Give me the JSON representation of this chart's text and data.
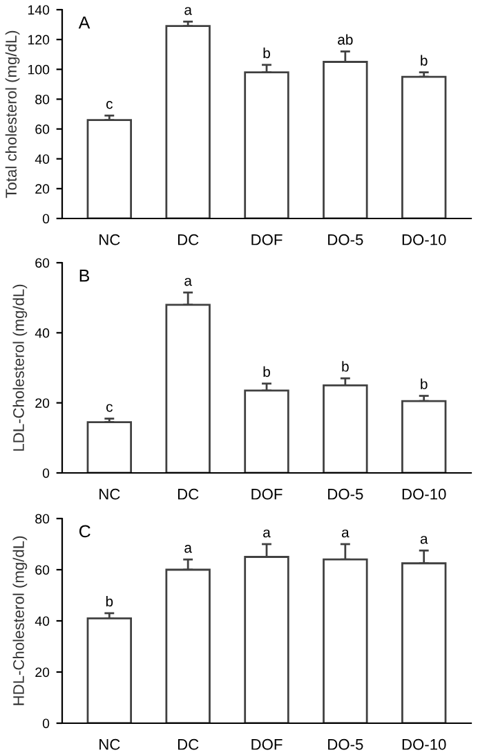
{
  "chart_data": [
    {
      "type": "bar",
      "title": "A",
      "ylabel": "Total cholesterol (mg/dL)",
      "categories": [
        "NC",
        "DC",
        "DOF",
        "DO-5",
        "DO-10"
      ],
      "color": "#ffffff",
      "values": [
        66,
        129,
        98,
        105,
        95
      ],
      "errors": [
        [
          66,
          69
        ],
        [
          129,
          132
        ],
        [
          98,
          103
        ],
        [
          105,
          112
        ],
        [
          95,
          98
        ]
      ],
      "ylim": [
        0,
        140
      ],
      "yticks": [
        0,
        20,
        40,
        60,
        80,
        100,
        120,
        140
      ],
      "annotations": [
        {
          "text": "c",
          "x": "NC",
          "y": 69
        },
        {
          "text": "a",
          "x": "DC",
          "y": 132
        },
        {
          "text": "b",
          "x": "DOF",
          "y": 103
        },
        {
          "text": "ab",
          "x": "DO-5",
          "y": 112
        },
        {
          "text": "b",
          "x": "DO-10",
          "y": 98
        }
      ]
    },
    {
      "type": "bar",
      "title": "B",
      "ylabel": "LDL-Cholesterol (mg/dL)",
      "categories": [
        "NC",
        "DC",
        "DOF",
        "DO-5",
        "DO-10"
      ],
      "color": "#ffffff",
      "values": [
        14.5,
        48,
        23.5,
        25,
        20.5
      ],
      "errors": [
        [
          14.5,
          15.5
        ],
        [
          48,
          51.5
        ],
        [
          23.5,
          25.5
        ],
        [
          25,
          27
        ],
        [
          20.5,
          22
        ]
      ],
      "ylim": [
        0,
        60
      ],
      "yticks": [
        0,
        20,
        40,
        60
      ],
      "annotations": [
        {
          "text": "c",
          "x": "NC",
          "y": 15.5
        },
        {
          "text": "a",
          "x": "DC",
          "y": 51.5
        },
        {
          "text": "b",
          "x": "DOF",
          "y": 25.5
        },
        {
          "text": "b",
          "x": "DO-5",
          "y": 27
        },
        {
          "text": "b",
          "x": "DO-10",
          "y": 22
        }
      ]
    },
    {
      "type": "bar",
      "title": "C",
      "ylabel": "HDL-Cholesterol (mg/dL)",
      "categories": [
        "NC",
        "DC",
        "DOF",
        "DO-5",
        "DO-10"
      ],
      "color": "#ffffff",
      "values": [
        41,
        60,
        65,
        64,
        62.5
      ],
      "errors": [
        [
          41,
          43
        ],
        [
          60,
          64
        ],
        [
          65,
          70
        ],
        [
          64,
          70
        ],
        [
          62.5,
          67.5
        ]
      ],
      "ylim": [
        0,
        80
      ],
      "yticks": [
        0,
        20,
        40,
        60,
        80
      ],
      "annotations": [
        {
          "text": "b",
          "x": "NC",
          "y": 43
        },
        {
          "text": "a",
          "x": "DC",
          "y": 64
        },
        {
          "text": "a",
          "x": "DOF",
          "y": 70
        },
        {
          "text": "a",
          "x": "DO-5",
          "y": 70
        },
        {
          "text": "a",
          "x": "DO-10",
          "y": 67.5
        }
      ]
    }
  ]
}
